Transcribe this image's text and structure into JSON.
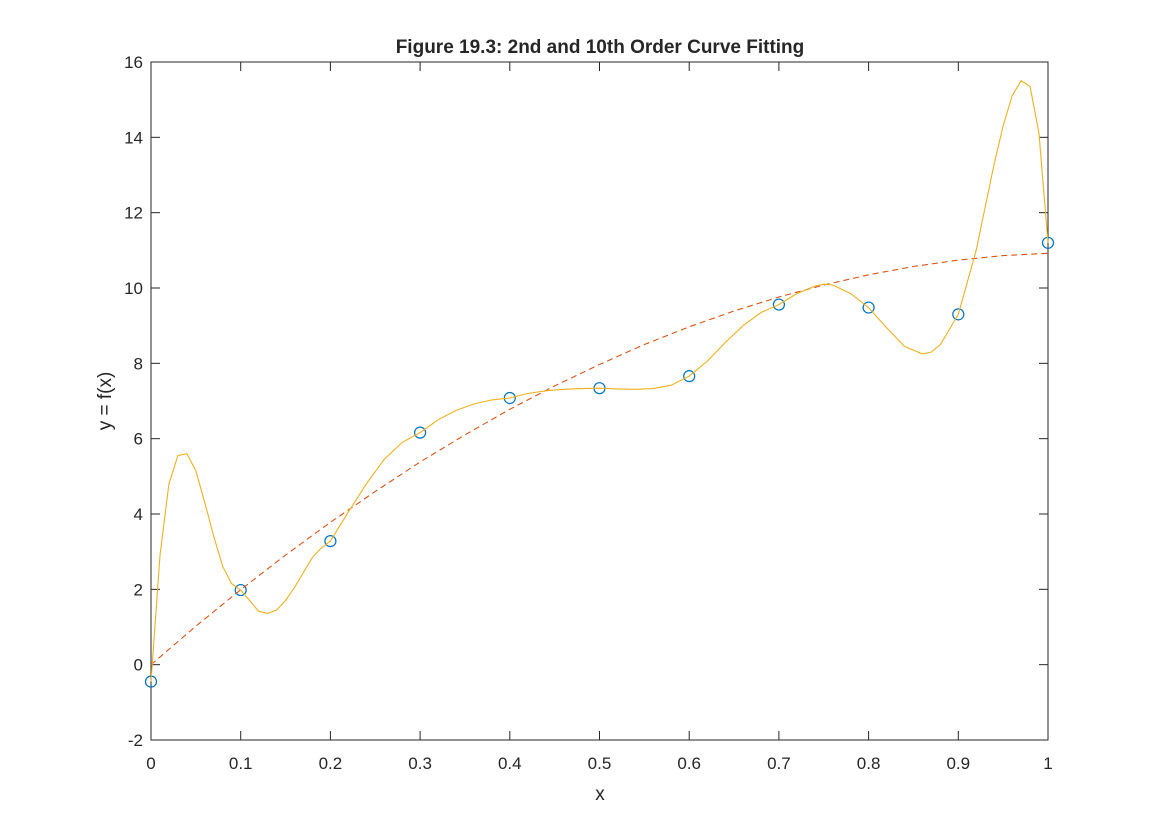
{
  "figure": {
    "title": "Figure 19.3: 2nd and 10th Order Curve Fitting"
  },
  "chart_data": {
    "type": "line",
    "title": "Figure 19.3: 2nd and 10th Order Curve Fitting",
    "xlabel": "x",
    "ylabel": "y = f(x)",
    "xlim": [
      0,
      1
    ],
    "ylim": [
      -2,
      16
    ],
    "xticks": [
      0,
      0.1,
      0.2,
      0.3,
      0.4,
      0.5,
      0.6,
      0.7,
      0.8,
      0.9,
      1
    ],
    "xtick_labels": [
      "0",
      "0.1",
      "0.2",
      "0.3",
      "0.4",
      "0.5",
      "0.6",
      "0.7",
      "0.8",
      "0.9",
      "1"
    ],
    "yticks": [
      -2,
      0,
      2,
      4,
      6,
      8,
      10,
      12,
      14,
      16
    ],
    "ytick_labels": [
      "-2",
      "0",
      "2",
      "4",
      "6",
      "8",
      "10",
      "12",
      "14",
      "16"
    ],
    "grid": false,
    "legend": "none",
    "series": [
      {
        "style": "markers-circle",
        "color": "#0072BD",
        "x": [
          0,
          0.1,
          0.2,
          0.3,
          0.4,
          0.5,
          0.6,
          0.7,
          0.8,
          0.9,
          1
        ],
        "y": [
          -0.45,
          1.98,
          3.28,
          6.16,
          7.08,
          7.34,
          7.66,
          9.56,
          9.48,
          9.3,
          11.2
        ]
      },
      {
        "style": "dashed",
        "color": "#D95319",
        "x": [
          0,
          0.05,
          0.1,
          0.15,
          0.2,
          0.25,
          0.3,
          0.35,
          0.4,
          0.45,
          0.5,
          0.55,
          0.6,
          0.65,
          0.7,
          0.75,
          0.8,
          0.85,
          0.9,
          0.95,
          1
        ],
        "y": [
          0.0,
          1.02,
          1.99,
          2.91,
          3.78,
          4.6,
          5.38,
          6.1,
          6.78,
          7.4,
          7.97,
          8.5,
          8.97,
          9.39,
          9.76,
          10.08,
          10.35,
          10.57,
          10.74,
          10.86,
          10.92
        ]
      },
      {
        "style": "solid",
        "color": "#EDB120",
        "x": [
          0,
          0.01,
          0.02,
          0.03,
          0.04,
          0.05,
          0.06,
          0.07,
          0.08,
          0.09,
          0.1,
          0.11,
          0.12,
          0.13,
          0.14,
          0.15,
          0.16,
          0.17,
          0.18,
          0.19,
          0.2,
          0.22,
          0.24,
          0.26,
          0.28,
          0.3,
          0.32,
          0.34,
          0.36,
          0.38,
          0.4,
          0.42,
          0.44,
          0.46,
          0.48,
          0.5,
          0.52,
          0.54,
          0.56,
          0.58,
          0.6,
          0.62,
          0.64,
          0.66,
          0.68,
          0.7,
          0.72,
          0.74,
          0.75,
          0.76,
          0.78,
          0.8,
          0.82,
          0.84,
          0.86,
          0.87,
          0.88,
          0.9,
          0.92,
          0.94,
          0.95,
          0.96,
          0.97,
          0.98,
          0.99,
          1
        ],
        "y": [
          -0.45,
          2.9,
          4.8,
          5.55,
          5.6,
          5.15,
          4.3,
          3.4,
          2.6,
          2.15,
          1.98,
          1.7,
          1.42,
          1.36,
          1.45,
          1.7,
          2.05,
          2.45,
          2.85,
          3.1,
          3.28,
          4.05,
          4.8,
          5.45,
          5.9,
          6.16,
          6.5,
          6.75,
          6.92,
          7.03,
          7.08,
          7.2,
          7.27,
          7.31,
          7.33,
          7.34,
          7.32,
          7.31,
          7.33,
          7.42,
          7.66,
          8.05,
          8.55,
          9.0,
          9.35,
          9.56,
          9.85,
          10.05,
          10.1,
          10.08,
          9.85,
          9.48,
          8.95,
          8.45,
          8.25,
          8.3,
          8.5,
          9.3,
          11.0,
          13.3,
          14.3,
          15.1,
          15.5,
          15.35,
          14.1,
          11.2
        ]
      }
    ]
  }
}
